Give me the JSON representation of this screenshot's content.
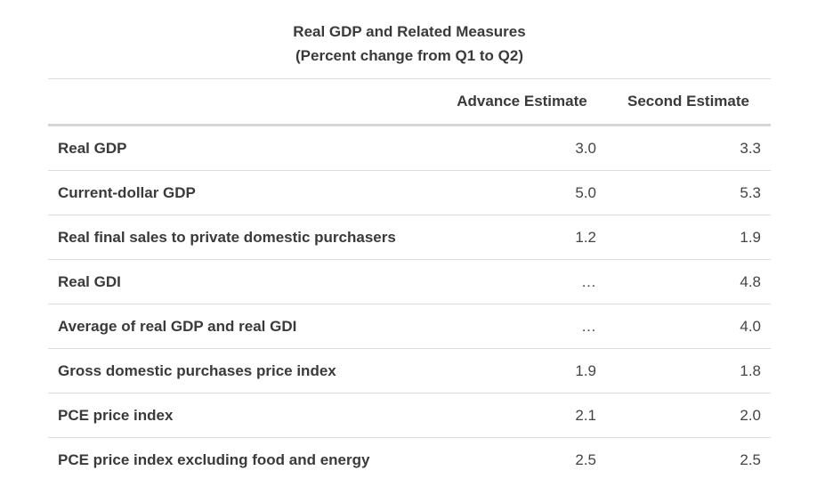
{
  "title": {
    "line1": "Real GDP and Related Measures",
    "line2": "(Percent change from Q1 to Q2)"
  },
  "table": {
    "headers": [
      "",
      "Advance Estimate",
      "Second Estimate"
    ],
    "rows": [
      {
        "label": "Real GDP",
        "advance": "3.0",
        "second": "3.3"
      },
      {
        "label": "Current-dollar GDP",
        "advance": "5.0",
        "second": "5.3"
      },
      {
        "label": "Real final sales to private domestic purchasers",
        "advance": "1.2",
        "second": "1.9"
      },
      {
        "label": "Real GDI",
        "advance": "…",
        "second": "4.8"
      },
      {
        "label": "Average of real GDP and real GDI",
        "advance": "…",
        "second": "4.0"
      },
      {
        "label": "Gross domestic purchases price index",
        "advance": "1.9",
        "second": "1.8"
      },
      {
        "label": "PCE price index",
        "advance": "2.1",
        "second": "2.0"
      },
      {
        "label": "PCE price index excluding food and energy",
        "advance": "2.5",
        "second": "2.5"
      }
    ]
  }
}
